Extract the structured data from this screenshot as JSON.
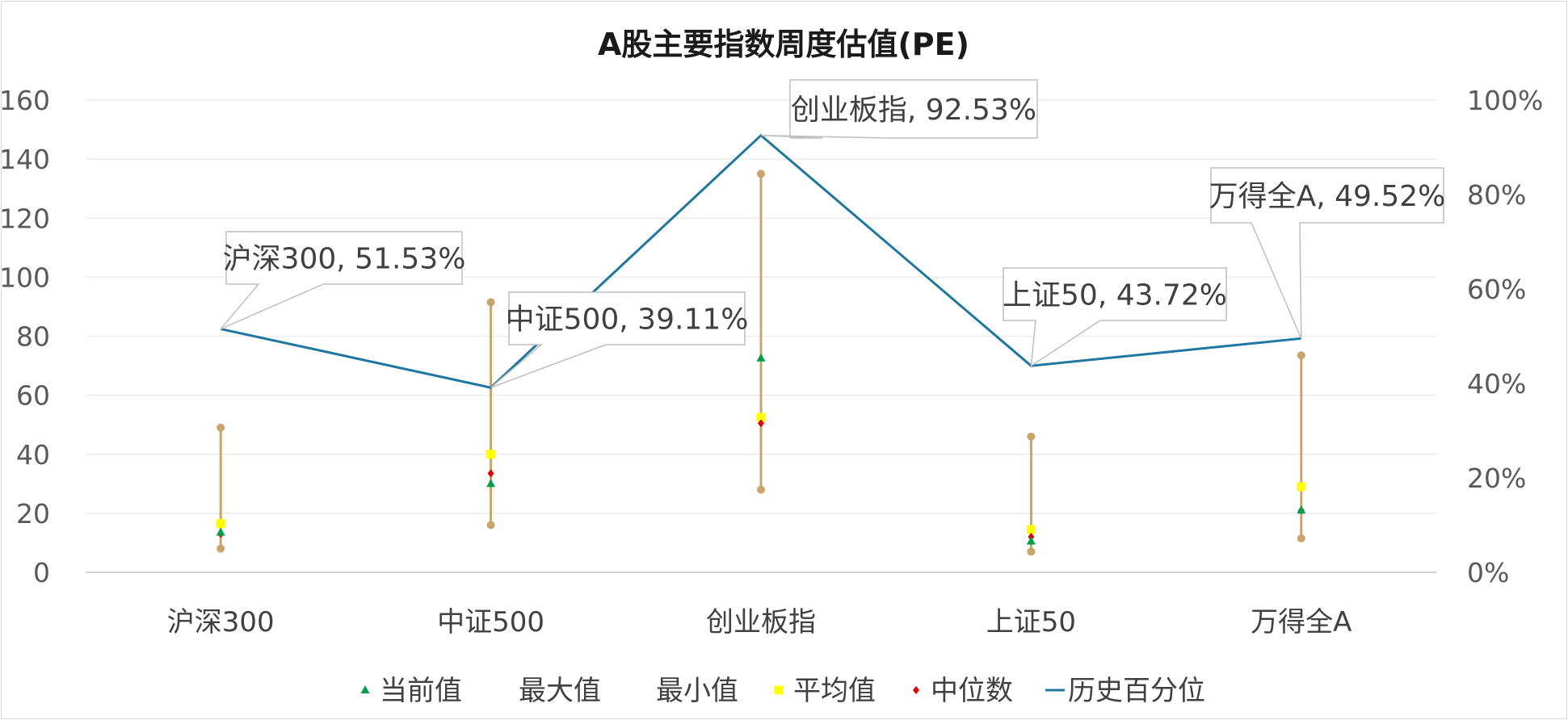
{
  "chart_data": {
    "type": "line",
    "title": "A股主要指数周度估值(PE)",
    "categories": [
      "沪深300",
      "中证500",
      "创业板指",
      "上证50",
      "万得全A"
    ],
    "y_left": {
      "ylim": [
        0,
        160
      ],
      "ticks": [
        "0",
        "20",
        "40",
        "60",
        "80",
        "100",
        "120",
        "140",
        "160"
      ]
    },
    "y_right": {
      "ylim": [
        0,
        1
      ],
      "ticks": [
        "0%",
        "20%",
        "40%",
        "60%",
        "80%",
        "100%"
      ]
    },
    "grid": true,
    "legend_position": "bottom",
    "series": [
      {
        "name": "当前值",
        "axis": "left",
        "marker": "triangle",
        "color": "#00a04a",
        "values": [
          13.5,
          30.0,
          72.5,
          10.5,
          21.0
        ]
      },
      {
        "name": "最大值",
        "axis": "left",
        "marker": "circle",
        "color": "#c9a56e",
        "values": [
          49.0,
          91.5,
          135.0,
          46.0,
          73.5
        ]
      },
      {
        "name": "最小值",
        "axis": "left",
        "marker": "circle",
        "color": "#c9a56e",
        "values": [
          8.0,
          16.0,
          28.0,
          7.0,
          11.5
        ]
      },
      {
        "name": "平均值",
        "axis": "left",
        "marker": "square",
        "color": "#ffff00",
        "values": [
          16.5,
          40.0,
          52.5,
          14.5,
          29.0
        ]
      },
      {
        "name": "中位数",
        "axis": "left",
        "marker": "diamond",
        "color": "#e00000",
        "values": [
          13.0,
          33.5,
          50.5,
          12.0,
          21.0
        ]
      },
      {
        "name": "历史百分位",
        "axis": "right",
        "marker": "line",
        "color": "#1f77a0",
        "values": [
          0.5153,
          0.3911,
          0.9253,
          0.4372,
          0.4952
        ]
      }
    ],
    "annotations": [
      {
        "text": "沪深300, 51.53%"
      },
      {
        "text": "中证500, 39.11%"
      },
      {
        "text": "创业板指, 92.53%"
      },
      {
        "text": "上证50, 43.72%"
      },
      {
        "text": "万得全A, 49.52%"
      }
    ]
  }
}
